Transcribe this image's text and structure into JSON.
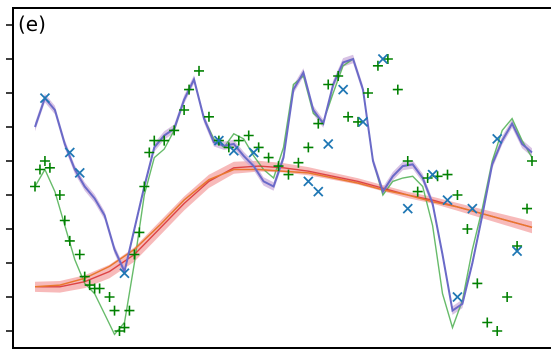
{
  "chart_data": {
    "type": "line",
    "panel_label": "(e)",
    "title": "",
    "xlabel": "",
    "ylabel": "",
    "xlim": [
      0,
      1
    ],
    "ylim": [
      -1.0,
      1.0
    ],
    "y_ticks": [
      -0.9,
      -0.7,
      -0.5,
      -0.3,
      -0.1,
      0.1,
      0.3,
      0.5,
      0.7,
      0.9
    ],
    "x_ticks": [],
    "grid": false,
    "legend": "none",
    "colors": {
      "purple_line": "#6a6ac8",
      "purple_band": "#c8a8d8",
      "green_line": "#4caf50",
      "green_marker": "#008000",
      "orange_line": "#e8772e",
      "red_line": "#d62728",
      "red_band": "#f4a3a3",
      "blue_marker": "#1f77b4",
      "axis": "#000000"
    },
    "series": [
      {
        "kind": "green_line",
        "x": [
          0.0,
          0.02,
          0.04,
          0.06,
          0.08,
          0.1,
          0.12,
          0.14,
          0.16,
          0.18,
          0.2,
          0.22,
          0.24,
          0.26,
          0.28,
          0.3,
          0.32,
          0.34,
          0.36,
          0.38,
          0.4,
          0.42,
          0.44,
          0.46,
          0.48,
          0.5,
          0.52,
          0.54,
          0.56,
          0.58,
          0.6,
          0.62,
          0.64,
          0.66,
          0.68,
          0.7,
          0.72,
          0.74,
          0.76,
          0.78,
          0.8,
          0.82,
          0.84,
          0.86,
          0.88,
          0.9,
          0.92,
          0.94,
          0.96,
          0.98,
          1.0
        ],
        "y": [
          -0.05,
          0.05,
          -0.08,
          -0.28,
          -0.48,
          -0.62,
          -0.68,
          -0.8,
          -0.92,
          -0.85,
          -0.5,
          -0.1,
          0.12,
          0.17,
          0.28,
          0.46,
          0.58,
          0.35,
          0.23,
          0.18,
          0.26,
          0.23,
          0.13,
          0.05,
          0.0,
          0.18,
          0.55,
          0.6,
          0.38,
          0.33,
          0.5,
          0.66,
          0.7,
          0.52,
          0.1,
          -0.1,
          -0.02,
          0.0,
          0.01,
          -0.05,
          -0.28,
          -0.68,
          -0.88,
          -0.72,
          -0.42,
          -0.18,
          0.1,
          0.28,
          0.35,
          0.22,
          0.12
        ]
      },
      {
        "kind": "purple_mean",
        "x": [
          0.0,
          0.02,
          0.04,
          0.06,
          0.08,
          0.1,
          0.12,
          0.14,
          0.16,
          0.18,
          0.2,
          0.22,
          0.24,
          0.26,
          0.28,
          0.3,
          0.32,
          0.34,
          0.36,
          0.38,
          0.4,
          0.42,
          0.44,
          0.46,
          0.48,
          0.5,
          0.52,
          0.54,
          0.56,
          0.58,
          0.6,
          0.62,
          0.64,
          0.66,
          0.68,
          0.7,
          0.72,
          0.74,
          0.76,
          0.78,
          0.8,
          0.82,
          0.84,
          0.86,
          0.88,
          0.9,
          0.92,
          0.94,
          0.96,
          0.98,
          1.0
        ],
        "y": [
          0.3,
          0.47,
          0.4,
          0.2,
          0.05,
          -0.05,
          -0.12,
          -0.22,
          -0.42,
          -0.55,
          -0.3,
          -0.05,
          0.18,
          0.25,
          0.29,
          0.46,
          0.58,
          0.35,
          0.21,
          0.19,
          0.2,
          0.13,
          0.07,
          -0.02,
          -0.05,
          0.12,
          0.52,
          0.62,
          0.4,
          0.32,
          0.55,
          0.68,
          0.7,
          0.52,
          0.1,
          -0.08,
          0.01,
          0.07,
          0.08,
          0.0,
          -0.15,
          -0.45,
          -0.78,
          -0.74,
          -0.5,
          -0.22,
          0.08,
          0.22,
          0.32,
          0.2,
          0.15
        ]
      },
      {
        "kind": "red_mean",
        "x": [
          0.0,
          0.05,
          0.1,
          0.15,
          0.2,
          0.25,
          0.3,
          0.35,
          0.4,
          0.45,
          0.5,
          0.55,
          0.6,
          0.65,
          0.7,
          0.75,
          0.8,
          0.85,
          0.9,
          0.95,
          1.0
        ],
        "y": [
          -0.64,
          -0.64,
          -0.61,
          -0.55,
          -0.45,
          -0.3,
          -0.15,
          -0.02,
          0.06,
          0.07,
          0.06,
          0.04,
          0.01,
          -0.02,
          -0.06,
          -0.1,
          -0.13,
          -0.17,
          -0.21,
          -0.25,
          -0.29
        ]
      },
      {
        "kind": "orange_mean",
        "x": [
          0.0,
          0.05,
          0.1,
          0.15,
          0.2,
          0.25,
          0.3,
          0.35,
          0.4,
          0.45,
          0.5,
          0.55,
          0.6,
          0.65,
          0.7,
          0.75,
          0.8,
          0.85,
          0.9,
          0.95,
          1.0
        ],
        "y": [
          -0.64,
          -0.63,
          -0.59,
          -0.52,
          -0.42,
          -0.28,
          -0.13,
          -0.01,
          0.05,
          0.05,
          0.04,
          0.03,
          0.0,
          -0.03,
          -0.07,
          -0.1,
          -0.14,
          -0.17,
          -0.21,
          -0.25,
          -0.29
        ]
      },
      {
        "kind": "green_plus",
        "x": [
          0.0,
          0.01,
          0.02,
          0.03,
          0.05,
          0.06,
          0.07,
          0.09,
          0.1,
          0.11,
          0.12,
          0.13,
          0.15,
          0.16,
          0.17,
          0.18,
          0.19,
          0.2,
          0.21,
          0.22,
          0.23,
          0.24,
          0.26,
          0.28,
          0.3,
          0.31,
          0.33,
          0.35,
          0.37,
          0.39,
          0.41,
          0.43,
          0.45,
          0.47,
          0.49,
          0.51,
          0.53,
          0.55,
          0.57,
          0.59,
          0.61,
          0.63,
          0.65,
          0.67,
          0.69,
          0.71,
          0.73,
          0.75,
          0.77,
          0.79,
          0.81,
          0.83,
          0.85,
          0.87,
          0.89,
          0.91,
          0.93,
          0.95,
          0.97,
          0.99,
          1.0
        ],
        "y": [
          -0.05,
          0.05,
          0.1,
          0.06,
          -0.1,
          -0.25,
          -0.37,
          -0.45,
          -0.58,
          -0.63,
          -0.65,
          -0.65,
          -0.7,
          -0.78,
          -0.9,
          -0.88,
          -0.78,
          -0.45,
          -0.32,
          -0.05,
          0.15,
          0.22,
          0.22,
          0.28,
          0.4,
          0.52,
          0.63,
          0.36,
          0.22,
          0.18,
          0.22,
          0.25,
          0.18,
          0.12,
          0.07,
          0.02,
          0.09,
          0.18,
          0.32,
          0.55,
          0.6,
          0.36,
          0.33,
          0.5,
          0.66,
          0.7,
          0.52,
          0.1,
          -0.08,
          0.0,
          0.01,
          0.02,
          -0.1,
          -0.3,
          -0.62,
          -0.85,
          -0.9,
          -0.7,
          -0.4,
          -0.18,
          0.1
        ]
      },
      {
        "kind": "blue_x",
        "x": [
          0.02,
          0.07,
          0.09,
          0.18,
          0.37,
          0.4,
          0.44,
          0.55,
          0.57,
          0.59,
          0.62,
          0.66,
          0.7,
          0.75,
          0.8,
          0.83,
          0.85,
          0.88,
          0.93,
          0.97
        ],
        "y": [
          0.47,
          0.15,
          0.03,
          -0.56,
          0.22,
          0.16,
          0.15,
          -0.02,
          -0.08,
          0.2,
          0.52,
          0.33,
          0.7,
          -0.18,
          0.02,
          -0.13,
          -0.7,
          -0.18,
          0.23,
          -0.43
        ]
      }
    ]
  }
}
